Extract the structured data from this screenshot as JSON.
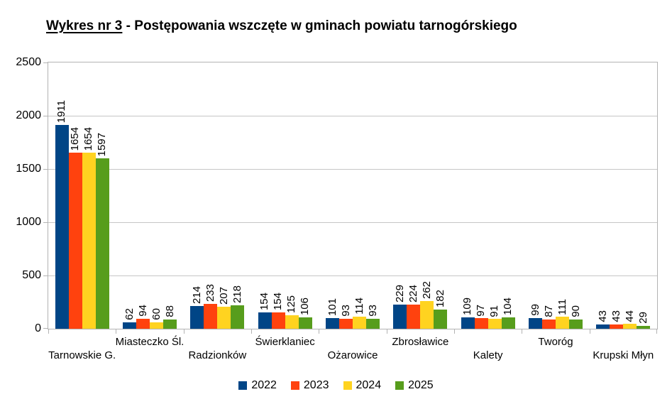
{
  "title": {
    "underlined_part": "Wykres nr 3",
    "rest_part": " - Postępowania wszczęte w gminach powiatu tarnogórskiego"
  },
  "chart_data": {
    "type": "bar",
    "title": "Wykres nr 3 - Postępowania wszczęte w gminach powiatu tarnogórskiego",
    "categories": [
      "Tarnowskie G.",
      "Miasteczko Śl.",
      "Radzionków",
      "Świerklaniec",
      "Ożarowice",
      "Zbrosławice",
      "Kalety",
      "Tworóg",
      "Krupski Młyn"
    ],
    "series": [
      {
        "name": "2022",
        "color": "#004586",
        "values": [
          1911,
          62,
          214,
          154,
          101,
          229,
          109,
          99,
          43
        ]
      },
      {
        "name": "2023",
        "color": "#ff420e",
        "values": [
          1654,
          94,
          233,
          154,
          93,
          224,
          97,
          87,
          43
        ]
      },
      {
        "name": "2024",
        "color": "#ffd320",
        "values": [
          1654,
          60,
          207,
          125,
          114,
          262,
          91,
          111,
          44
        ]
      },
      {
        "name": "2025",
        "color": "#579d1c",
        "values": [
          1597,
          88,
          218,
          106,
          93,
          182,
          104,
          90,
          29
        ]
      }
    ],
    "xlabel": "",
    "ylabel": "",
    "ylim": [
      0,
      2500
    ],
    "yticks": [
      0,
      500,
      1000,
      1500,
      2000,
      2500
    ],
    "grid": true,
    "bar_value_labels": true,
    "value_label_rotation": 90,
    "legend_position": "bottom",
    "colors": {
      "axis_gray": "#b3b3b3",
      "grid_gray": "#c6c6c6",
      "background": "#ffffff",
      "text": "#000000"
    }
  }
}
